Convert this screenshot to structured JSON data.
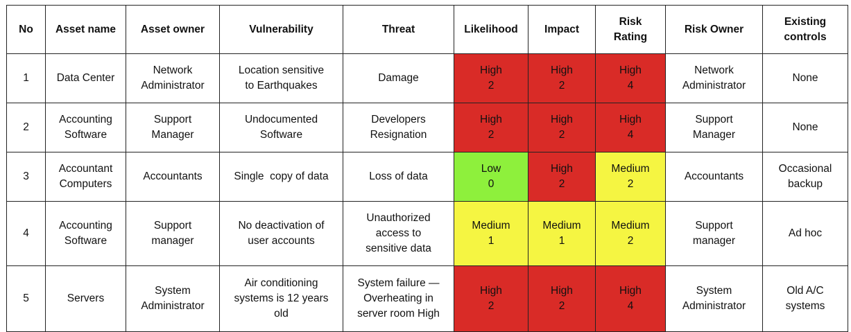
{
  "headers": [
    [
      "No"
    ],
    [
      "Asset name"
    ],
    [
      "Asset owner"
    ],
    [
      "Vulnerability"
    ],
    [
      "Threat"
    ],
    [
      "Likelihood"
    ],
    [
      "Impact"
    ],
    [
      "Risk",
      "Rating"
    ],
    [
      "Risk Owner"
    ],
    [
      "Existing",
      "controls"
    ]
  ],
  "rows": [
    {
      "no": "1",
      "asset_name": [
        "Data Center"
      ],
      "asset_owner": [
        "Network",
        "Administrator"
      ],
      "vulnerability": [
        "Location sensitive",
        "to Earthquakes"
      ],
      "threat": [
        "Damage"
      ],
      "likelihood": {
        "level": "High",
        "score": "2",
        "color": "#d92b27"
      },
      "impact": {
        "level": "High",
        "score": "2",
        "color": "#d92b27"
      },
      "risk_rating": {
        "level": "High",
        "score": "4",
        "color": "#d92b27"
      },
      "risk_owner": [
        "Network",
        "Administrator"
      ],
      "existing_controls": [
        "None"
      ]
    },
    {
      "no": "2",
      "asset_name": [
        "Accounting",
        "Software"
      ],
      "asset_owner": [
        "Support",
        "Manager"
      ],
      "vulnerability": [
        "Undocumented",
        "Software"
      ],
      "threat": [
        "Developers",
        "Resignation"
      ],
      "likelihood": {
        "level": "High",
        "score": "2",
        "color": "#d92b27"
      },
      "impact": {
        "level": "High",
        "score": "2",
        "color": "#d92b27"
      },
      "risk_rating": {
        "level": "High",
        "score": "4",
        "color": "#d92b27"
      },
      "risk_owner": [
        "Support",
        "Manager"
      ],
      "existing_controls": [
        "None"
      ]
    },
    {
      "no": "3",
      "asset_name": [
        "Accountant",
        "Computers"
      ],
      "asset_owner": [
        "Accountants"
      ],
      "vulnerability": [
        "Single  copy of data"
      ],
      "threat": [
        "Loss of data"
      ],
      "likelihood": {
        "level": "Low",
        "score": "0",
        "color": "#8ef03c"
      },
      "impact": {
        "level": "High",
        "score": "2",
        "color": "#d92b27"
      },
      "risk_rating": {
        "level": "Medium",
        "score": "2",
        "color": "#f5f542"
      },
      "risk_owner": [
        "Accountants"
      ],
      "existing_controls": [
        "Occasional",
        "backup"
      ]
    },
    {
      "no": "4",
      "asset_name": [
        "Accounting",
        "Software"
      ],
      "asset_owner": [
        "Support",
        "manager"
      ],
      "vulnerability": [
        "No deactivation of",
        "user accounts"
      ],
      "threat": [
        "Unauthorized",
        "access to",
        "sensitive data"
      ],
      "likelihood": {
        "level": "Medium",
        "score": "1",
        "color": "#f5f542"
      },
      "impact": {
        "level": "Medium",
        "score": "1",
        "color": "#f5f542"
      },
      "risk_rating": {
        "level": "Medium",
        "score": "2",
        "color": "#f5f542"
      },
      "risk_owner": [
        "Support",
        "manager"
      ],
      "existing_controls": [
        "Ad hoc"
      ]
    },
    {
      "no": "5",
      "asset_name": [
        "Servers"
      ],
      "asset_owner": [
        "System",
        "Administrator"
      ],
      "vulnerability": [
        "Air conditioning",
        "systems is 12 years",
        "old"
      ],
      "threat": [
        "System failure —",
        "Overheating in",
        "server room High"
      ],
      "likelihood": {
        "level": "High",
        "score": "2",
        "color": "#d92b27"
      },
      "impact": {
        "level": "High",
        "score": "2",
        "color": "#d92b27"
      },
      "risk_rating": {
        "level": "High",
        "score": "4",
        "color": "#d92b27"
      },
      "risk_owner": [
        "System",
        "Administrator"
      ],
      "existing_controls": [
        "Old A/C",
        "systems"
      ]
    }
  ]
}
